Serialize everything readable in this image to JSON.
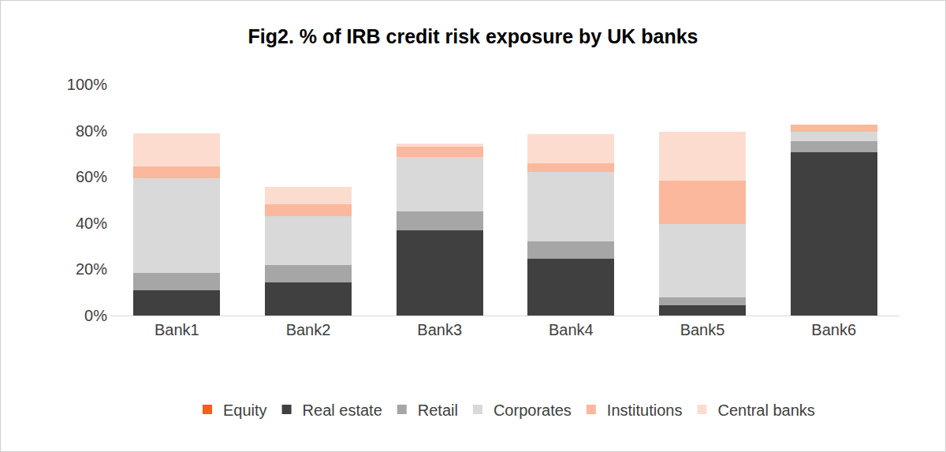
{
  "chart_data": {
    "type": "bar",
    "title": "Fig2. % of IRB credit risk exposure by UK banks",
    "categories": [
      "Bank1",
      "Bank2",
      "Bank3",
      "Bank4",
      "Bank5",
      "Bank6"
    ],
    "stacked": true,
    "grid": false,
    "legend": "bottom",
    "ylim": [
      0,
      100
    ],
    "yticks": [
      {
        "value": 0,
        "label": "0%"
      },
      {
        "value": 20,
        "label": "20%"
      },
      {
        "value": 40,
        "label": "40%"
      },
      {
        "value": 60,
        "label": "60%"
      },
      {
        "value": 80,
        "label": "80%"
      },
      {
        "value": 100,
        "label": "100%"
      }
    ],
    "series": [
      {
        "name": "Equity",
        "color": "#ff5a1f",
        "values": [
          0,
          0,
          0,
          0,
          0,
          0
        ]
      },
      {
        "name": "Real estate",
        "color": "#404040",
        "values": [
          11,
          14.5,
          37,
          24.5,
          4.5,
          70.5
        ]
      },
      {
        "name": "Retail",
        "color": "#a6a6a6",
        "values": [
          7.5,
          7.5,
          8,
          7.5,
          3.5,
          5
        ]
      },
      {
        "name": "Corporates",
        "color": "#d9d9d9",
        "values": [
          41,
          21,
          23.5,
          30,
          31.5,
          4
        ]
      },
      {
        "name": "Institutions",
        "color": "#fbb89c",
        "values": [
          5,
          5,
          4.5,
          4,
          19,
          3
        ]
      },
      {
        "name": "Central banks",
        "color": "#fddcd0",
        "values": [
          14.5,
          7.5,
          1.5,
          12.5,
          21,
          0
        ]
      }
    ]
  }
}
